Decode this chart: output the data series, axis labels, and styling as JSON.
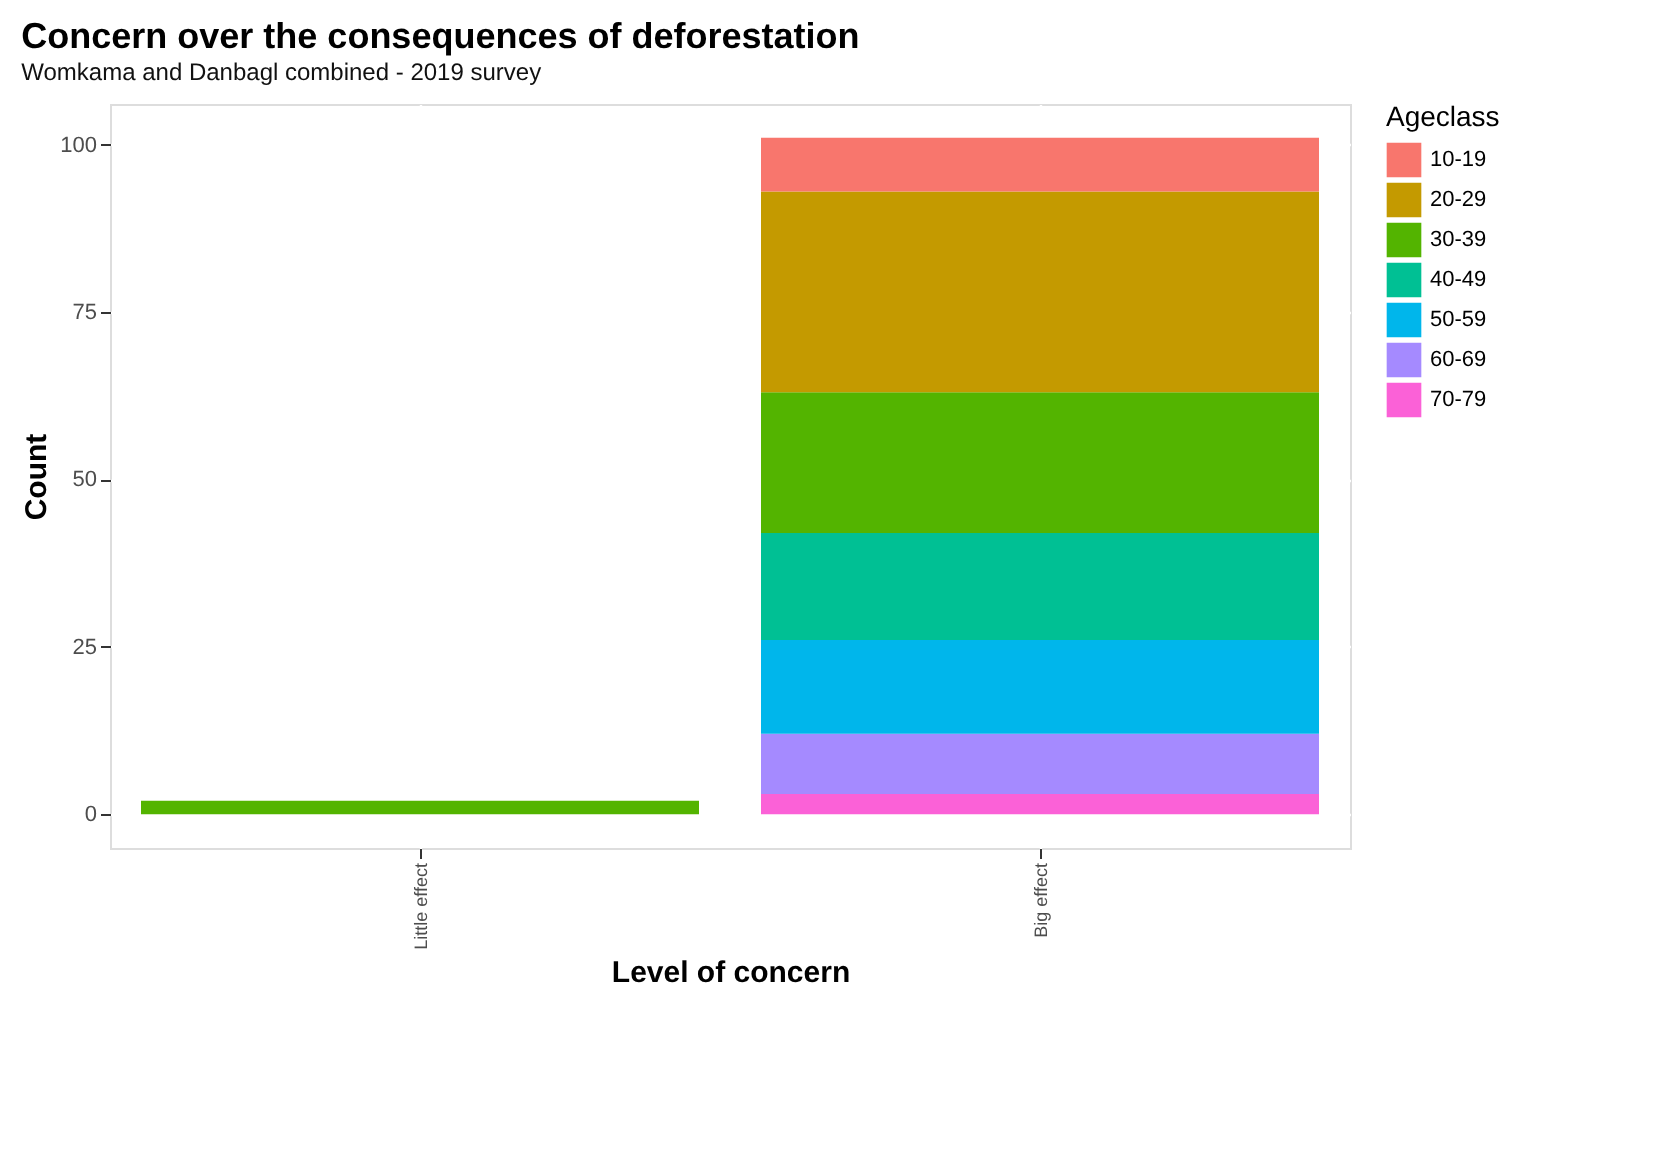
{
  "chart_data": {
    "type": "bar",
    "title": "Concern over the consequences of deforestation",
    "subtitle": "Womkama and Danbagl combined - 2019 survey",
    "xlabel": "Level of concern",
    "ylabel": "Count",
    "legend_title": "Ageclass",
    "categories": [
      "Little effect",
      "Big effect"
    ],
    "stacked": true,
    "series": [
      {
        "name": "70-79",
        "color": "#fb61d7",
        "values": [
          null,
          3
        ]
      },
      {
        "name": "60-69",
        "color": "#a58aff",
        "values": [
          null,
          9
        ]
      },
      {
        "name": "50-59",
        "color": "#00b6eb",
        "values": [
          null,
          14
        ]
      },
      {
        "name": "40-49",
        "color": "#00c094",
        "values": [
          null,
          16
        ]
      },
      {
        "name": "30-39",
        "color": "#53b400",
        "values": [
          2,
          21
        ]
      },
      {
        "name": "20-29",
        "color": "#c49a00",
        "values": [
          null,
          30
        ]
      },
      {
        "name": "10-19",
        "color": "#f8766d",
        "values": [
          null,
          8
        ]
      }
    ],
    "ylim": [
      -5.05,
      106.05
    ],
    "yticks": [
      0,
      25,
      50,
      75,
      100
    ],
    "grid": true,
    "legend": "right"
  }
}
